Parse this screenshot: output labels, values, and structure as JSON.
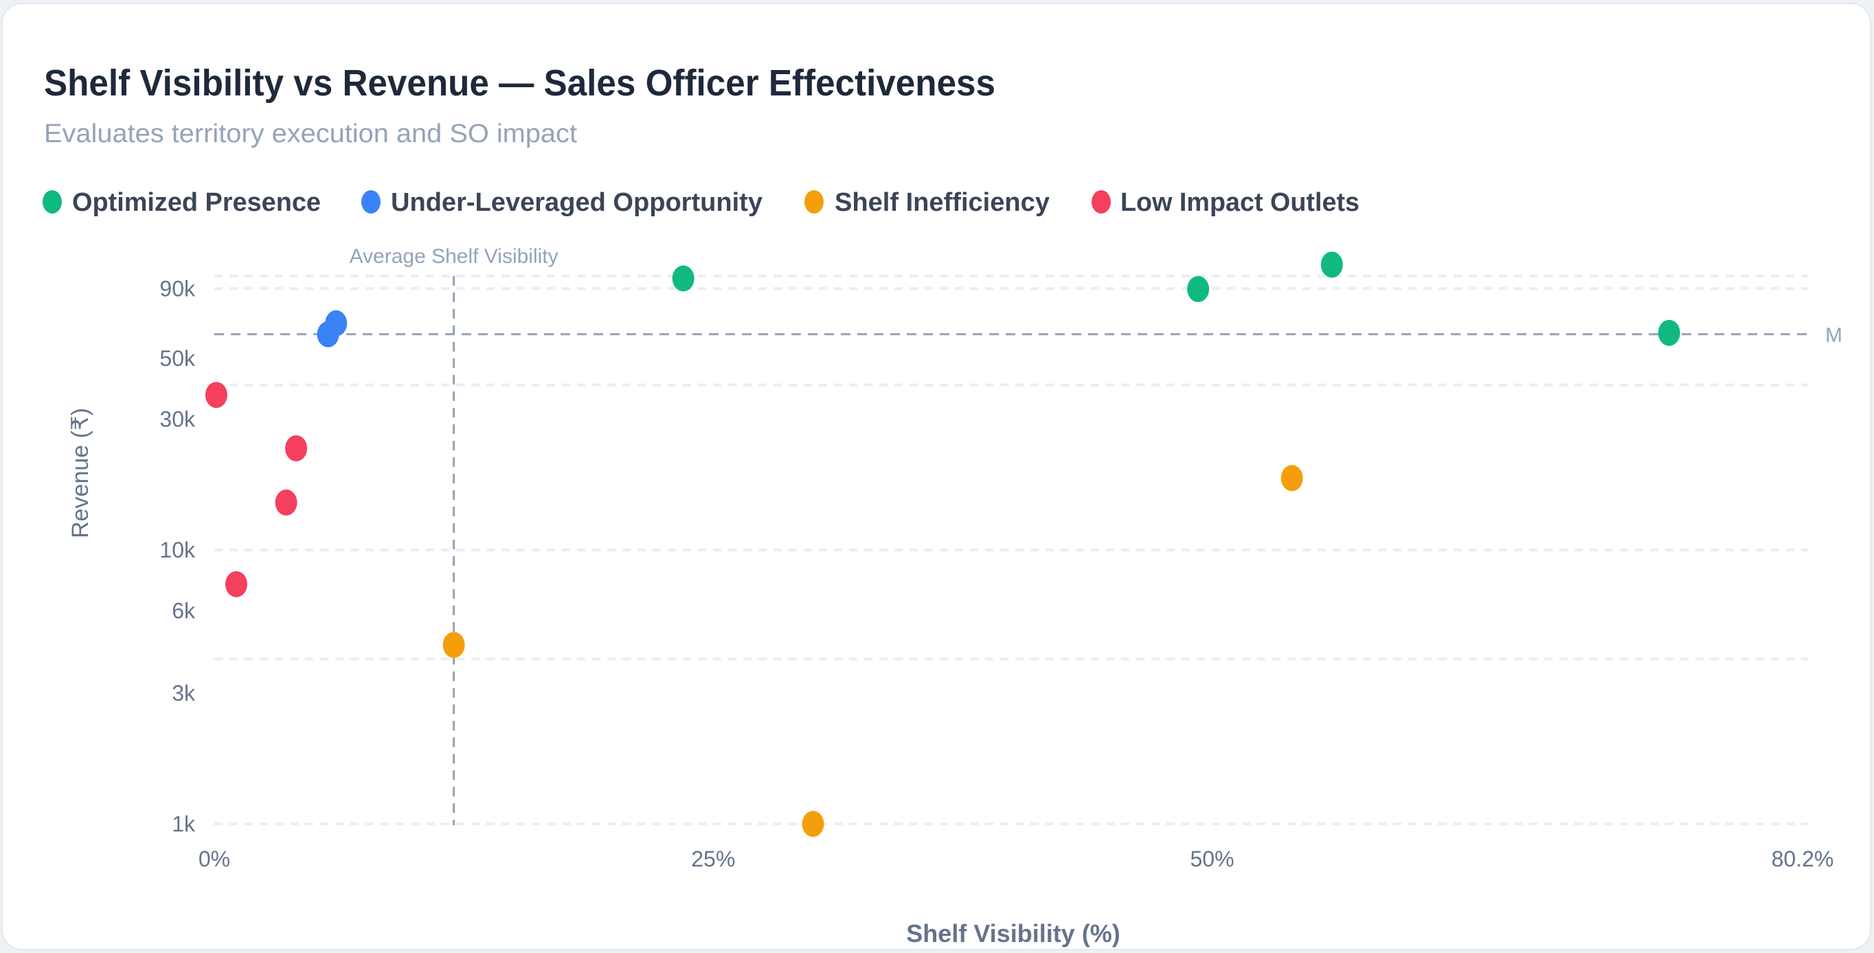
{
  "header": {
    "title": "Shelf Visibility vs Revenue — Sales Officer Effectiveness",
    "subtitle": "Evaluates territory execution and SO impact"
  },
  "legend": [
    {
      "label": "Optimized Presence",
      "color": "#10b981"
    },
    {
      "label": "Under-Leveraged Opportunity",
      "color": "#3b82f6"
    },
    {
      "label": "Shelf Inefficiency",
      "color": "#f59e0b"
    },
    {
      "label": "Low Impact Outlets",
      "color": "#f43f5e"
    }
  ],
  "chart_data": {
    "type": "scatter",
    "title": "Shelf Visibility vs Revenue — Sales Officer Effectiveness",
    "subtitle": "Evaluates territory execution and SO impact",
    "xlabel": "Shelf Visibility (%)",
    "ylabel": "Revenue (₹)",
    "xlim": [
      0,
      80.2
    ],
    "ylim": [
      1000,
      120000
    ],
    "y_scale": "log",
    "x_ticks": [
      {
        "value": 0,
        "label": "0%"
      },
      {
        "value": 25,
        "label": "25%"
      },
      {
        "value": 50,
        "label": "50%"
      },
      {
        "value": 80.2,
        "label": "80.2%"
      }
    ],
    "y_ticks": [
      {
        "value": 1000,
        "label": "1k"
      },
      {
        "value": 3000,
        "label": "3k"
      },
      {
        "value": 6000,
        "label": "6k"
      },
      {
        "value": 10000,
        "label": "10k"
      },
      {
        "value": 30000,
        "label": "30k"
      },
      {
        "value": 50000,
        "label": "50k"
      },
      {
        "value": 90000,
        "label": "90k"
      }
    ],
    "y_gridlines": [
      1000,
      4000,
      10000,
      40000,
      90000,
      100000
    ],
    "grid": true,
    "legend_position": "top-left",
    "reference_lines": [
      {
        "axis": "x",
        "value": 12.0,
        "label": "Average Shelf Visibility"
      },
      {
        "axis": "y",
        "value": 61300,
        "label": "M"
      }
    ],
    "series": [
      {
        "name": "Optimized Presence",
        "color": "#10b981",
        "points": [
          {
            "x": 23.5,
            "y": 98000
          },
          {
            "x": 49.3,
            "y": 89600
          },
          {
            "x": 56.0,
            "y": 110000
          },
          {
            "x": 72.9,
            "y": 62000
          }
        ]
      },
      {
        "name": "Under-Leveraged Opportunity",
        "color": "#3b82f6",
        "points": [
          {
            "x": 6.1,
            "y": 67200
          },
          {
            "x": 5.7,
            "y": 61300
          }
        ]
      },
      {
        "name": "Shelf Inefficiency",
        "color": "#f59e0b",
        "points": [
          {
            "x": 54.0,
            "y": 18300
          },
          {
            "x": 12.0,
            "y": 4500
          },
          {
            "x": 30.0,
            "y": 1000
          }
        ]
      },
      {
        "name": "Low Impact Outlets",
        "color": "#f43f5e",
        "points": [
          {
            "x": 0.1,
            "y": 36800
          },
          {
            "x": 4.1,
            "y": 23500
          },
          {
            "x": 3.6,
            "y": 14900
          },
          {
            "x": 1.1,
            "y": 7500
          }
        ]
      }
    ]
  }
}
